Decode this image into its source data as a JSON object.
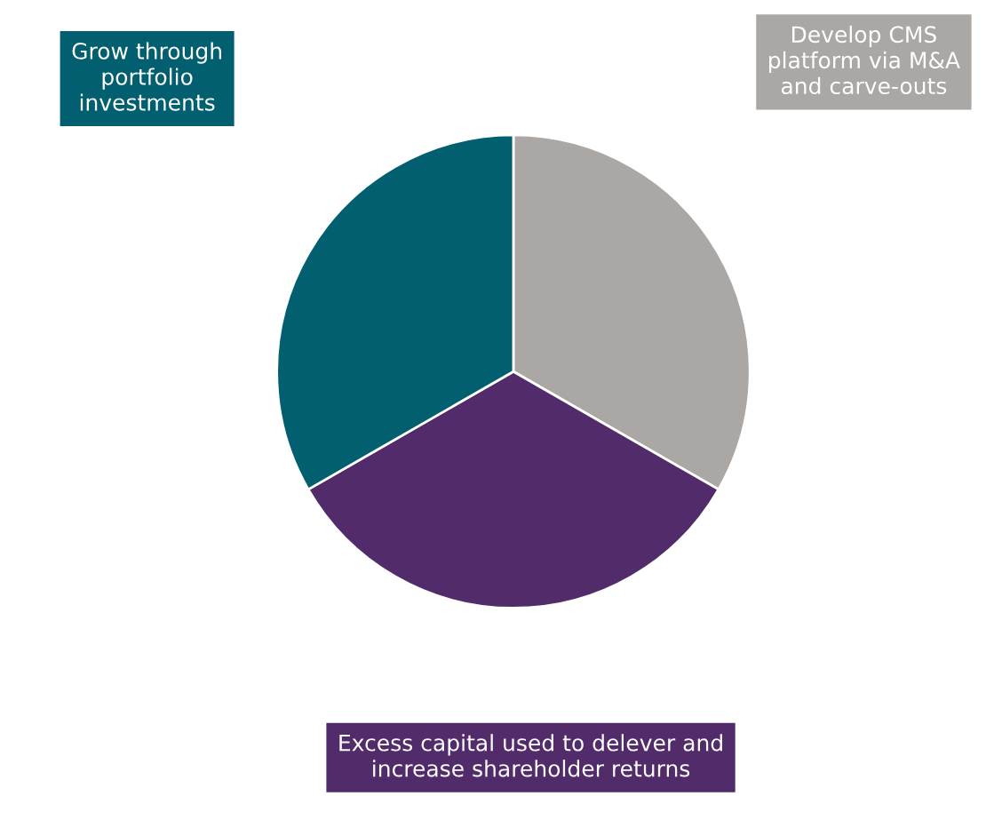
{
  "chart_data": {
    "type": "pie",
    "categories": [
      "Develop CMS\nplatform via M&A\nand carve-outs",
      "Excess capital used to delever and\nincrease shareholder returns",
      "Grow through\nportfolio\ninvestments"
    ],
    "values": [
      33.3,
      33.4,
      33.3
    ],
    "colors": [
      "#aba7a4",
      "#522c6a",
      "#025f6f"
    ]
  }
}
